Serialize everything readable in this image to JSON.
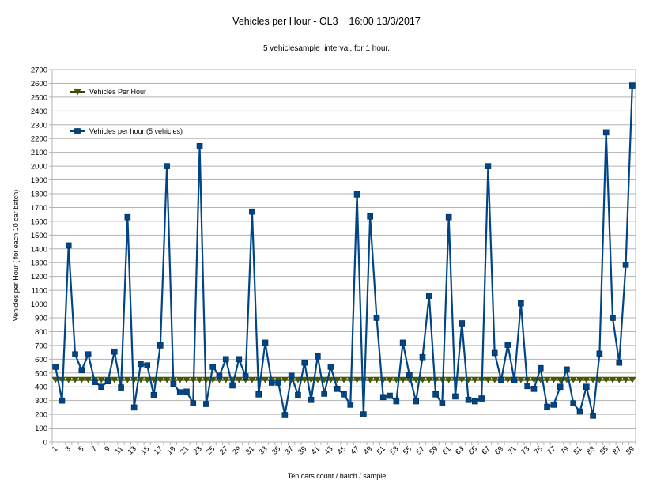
{
  "chart_data": {
    "type": "line",
    "title": "Vehicles per Hour - OL3    16:00 13/3/2017",
    "subtitle": "5 vehiclesample  interval, for 1 hour.",
    "xlabel": "Ten cars count / batch / sample",
    "ylabel": "Vehicles per Hour ( for each 10 car batch)",
    "ylim": [
      0,
      2700
    ],
    "ytick_step": 100,
    "x_tick_labels": [
      "1",
      "3",
      "5",
      "7",
      "9",
      "11",
      "13",
      "15",
      "17",
      "19",
      "21",
      "23",
      "25",
      "27",
      "29",
      "31",
      "33",
      "35",
      "37",
      "39",
      "41",
      "43",
      "45",
      "47",
      "49",
      "51",
      "53",
      "55",
      "57",
      "59",
      "61",
      "63",
      "65",
      "67",
      "69",
      "71",
      "73",
      "75",
      "77",
      "79",
      "81",
      "83",
      "85",
      "87",
      "89"
    ],
    "grid": "horizontal",
    "legend_position": "top-left",
    "series": [
      {
        "name": "Vehicles Per Hour",
        "color": "#3b4a00",
        "marker": "triangle-down",
        "constant_value": 450
      },
      {
        "name": "Vehicles per hour (5 vehicles)",
        "color": "#004586",
        "marker": "square",
        "values": [
          545,
          300,
          1425,
          635,
          520,
          635,
          435,
          400,
          440,
          655,
          395,
          1630,
          250,
          565,
          555,
          340,
          700,
          2000,
          420,
          360,
          365,
          280,
          2145,
          275,
          545,
          480,
          600,
          410,
          600,
          475,
          1670,
          345,
          720,
          430,
          430,
          195,
          480,
          340,
          575,
          305,
          620,
          350,
          545,
          385,
          345,
          270,
          1795,
          200,
          1635,
          900,
          325,
          335,
          295,
          720,
          485,
          295,
          615,
          1060,
          345,
          280,
          1630,
          330,
          860,
          305,
          295,
          315,
          2000,
          645,
          450,
          705,
          450,
          1005,
          405,
          385,
          535,
          255,
          270,
          400,
          525,
          280,
          220,
          400,
          190,
          640,
          2245,
          900,
          575,
          1285,
          2585
        ]
      }
    ]
  }
}
